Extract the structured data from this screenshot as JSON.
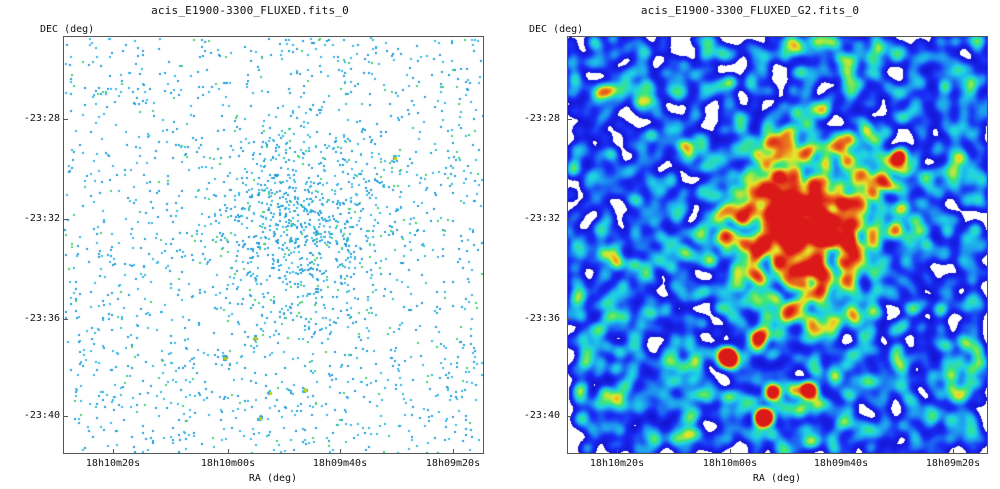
{
  "panels": [
    {
      "title": "acis_E1900-3300_FLUXED.fits_0",
      "y_axis_label": "DEC (deg)",
      "x_axis_label": "RA (deg)",
      "y_ticks": [
        "-23:28",
        "-23:32",
        "-23:36",
        "-23:40"
      ],
      "x_ticks": [
        "18h10m20s",
        "18h10m00s",
        "18h09m40s",
        "18h09m20s"
      ],
      "image": "sparse-event-map"
    },
    {
      "title": "acis_E1900-3300_FLUXED_G2.fits_0",
      "y_axis_label": "DEC (deg)",
      "x_axis_label": "RA (deg)",
      "y_ticks": [
        "-23:28",
        "-23:32",
        "-23:36",
        "-23:40"
      ],
      "x_ticks": [
        "18h10m20s",
        "18h10m00s",
        "18h09m40s",
        "18h09m20s"
      ],
      "image": "smoothed-intensity-map"
    }
  ],
  "colors": {
    "background": "#ffffff",
    "axis": "#555555",
    "cmap_low": "#1010e0",
    "cmap_mid": "#20c0e0",
    "cmap_high": "#e02020"
  }
}
